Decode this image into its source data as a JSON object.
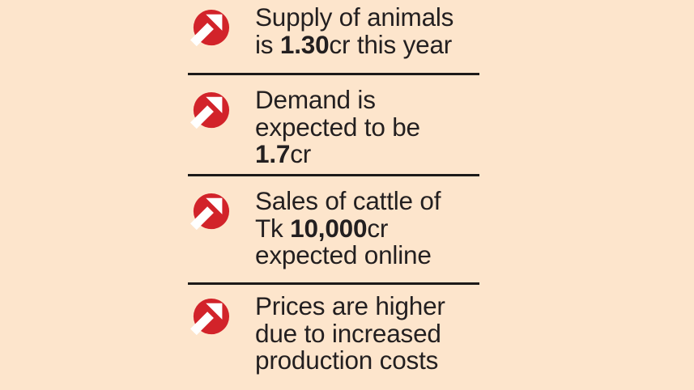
{
  "colors": {
    "background": "#fde5cc",
    "accent_red": "#d2232a",
    "text": "#231f20",
    "divider": "#1c1a19",
    "icon_arrow": "#ffffff"
  },
  "list": {
    "items": [
      {
        "icon": "arrow-up-right-circle-icon",
        "lines": [
          [
            {
              "t": "Supply of animals"
            }
          ],
          [
            {
              "t": "is "
            },
            {
              "t": "1.30",
              "b": true
            },
            {
              "t": "cr this year"
            }
          ]
        ]
      },
      {
        "icon": "arrow-up-right-circle-icon",
        "lines": [
          [
            {
              "t": "Demand is"
            }
          ],
          [
            {
              "t": "expected to be"
            }
          ],
          [
            {
              "t": "1.7",
              "b": true
            },
            {
              "t": "cr"
            }
          ]
        ]
      },
      {
        "icon": "arrow-up-right-circle-icon",
        "lines": [
          [
            {
              "t": "Sales of cattle of"
            }
          ],
          [
            {
              "t": "Tk "
            },
            {
              "t": "10,000",
              "b": true
            },
            {
              "t": "cr"
            }
          ],
          [
            {
              "t": "expected online"
            }
          ]
        ]
      },
      {
        "icon": "arrow-up-right-circle-icon",
        "lines": [
          [
            {
              "t": "Prices are higher"
            }
          ],
          [
            {
              "t": "due to increased"
            }
          ],
          [
            {
              "t": "production costs"
            }
          ]
        ]
      }
    ]
  }
}
